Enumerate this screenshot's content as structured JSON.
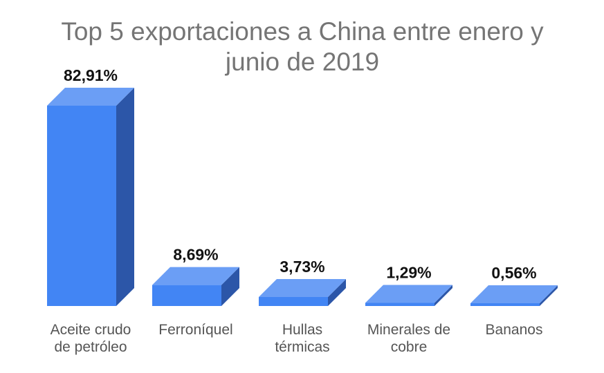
{
  "chart_data": {
    "type": "bar",
    "title_lines": [
      "Top 5 exportaciones a China entre enero y",
      "junio de 2019"
    ],
    "categories": [
      [
        "Aceite crudo",
        "de petróleo"
      ],
      [
        "Ferroníquel"
      ],
      [
        "Hullas",
        "térmicas"
      ],
      [
        "Minerales de",
        "cobre"
      ],
      [
        "Bananos"
      ]
    ],
    "values": [
      82.91,
      8.69,
      3.73,
      1.29,
      0.56
    ],
    "value_labels": [
      "82,91%",
      "8,69%",
      "3,73%",
      "1,29%",
      "0,56%"
    ],
    "ylim": [
      0,
      82.91
    ],
    "grid": false,
    "legend": "none",
    "colors": {
      "front": "#4285f4",
      "top": "#6b9ef5",
      "side": "#2c56a8"
    }
  }
}
